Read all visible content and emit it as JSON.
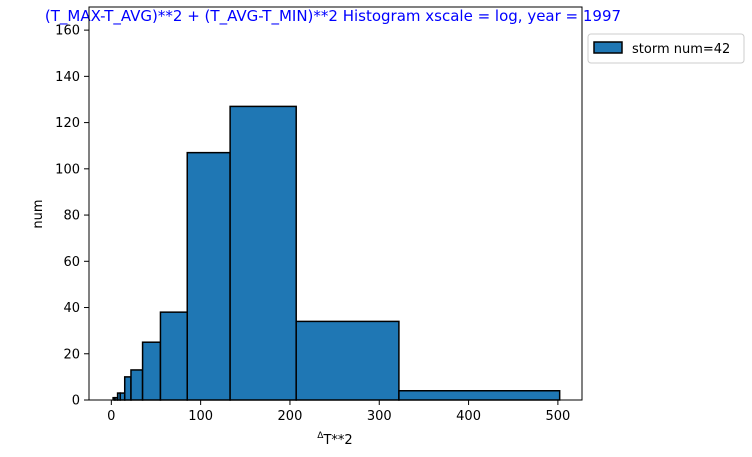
{
  "chart_data": {
    "type": "histogram",
    "title": "(T_MAX-T_AVG)**2 + (T_AVG-T_MIN)**2 Histogram xscale = log, year = 1997",
    "title_color": "#0000ff",
    "xlabel_superscript": "Δ",
    "xlabel": "T**2",
    "ylabel": "num",
    "xlim": [
      -25,
      527
    ],
    "ylim": [
      0,
      170
    ],
    "xticks": [
      0,
      100,
      200,
      300,
      400,
      500
    ],
    "yticks": [
      0,
      20,
      40,
      60,
      80,
      100,
      120,
      140,
      160
    ],
    "bar_color": "#1f77b4",
    "edge_color": "#000000",
    "bins": [
      {
        "x0": 2,
        "x1": 4,
        "value": 1
      },
      {
        "x0": 4,
        "x1": 7,
        "value": 1
      },
      {
        "x0": 7,
        "x1": 10,
        "value": 3
      },
      {
        "x0": 10,
        "x1": 15,
        "value": 3
      },
      {
        "x0": 15,
        "x1": 22,
        "value": 10
      },
      {
        "x0": 22,
        "x1": 35,
        "value": 13
      },
      {
        "x0": 35,
        "x1": 55,
        "value": 25
      },
      {
        "x0": 55,
        "x1": 85,
        "value": 38
      },
      {
        "x0": 85,
        "x1": 133,
        "value": 107
      },
      {
        "x0": 133,
        "x1": 207,
        "value": 127
      },
      {
        "x0": 207,
        "x1": 322,
        "value": 34
      },
      {
        "x0": 322,
        "x1": 502,
        "value": 4
      }
    ],
    "legend": {
      "label": "storm num=42",
      "placement": "outside upper right"
    }
  }
}
